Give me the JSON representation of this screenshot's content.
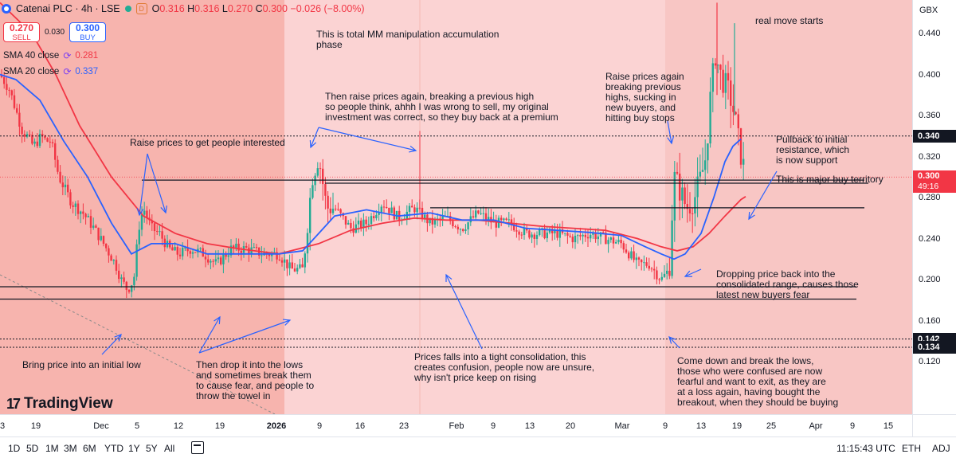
{
  "header": {
    "title": "Catenai PLC · 4h · LSE",
    "open_label": "O",
    "open": "0.316",
    "high_label": "H",
    "high": "0.316",
    "low_label": "L",
    "low": "0.270",
    "close_label": "C",
    "close": "0.300",
    "change": "−0.026 (−8.00%)",
    "d_badge": "D"
  },
  "trade": {
    "sell_price": "0.270",
    "sell_label": "SELL",
    "spread": "0.030",
    "buy_price": "0.300",
    "buy_label": "BUY"
  },
  "indicators": [
    {
      "label": "SMA 40 close",
      "value": "0.281",
      "color": "#f23645"
    },
    {
      "label": "SMA 20 close",
      "value": "0.337",
      "color": "#2962ff"
    }
  ],
  "price_axis": {
    "currency": "GBX",
    "ticks": [
      "0.440",
      "0.400",
      "0.360",
      "0.320",
      "0.280",
      "0.240",
      "0.200",
      "0.160",
      "0.120"
    ],
    "labels": [
      {
        "value": "0.340",
        "kind": "level"
      },
      {
        "value": "0.142",
        "kind": "level"
      },
      {
        "value": "0.134",
        "kind": "level"
      }
    ],
    "current_price": "0.300",
    "countdown": "49:16"
  },
  "time_axis": {
    "ticks": [
      {
        "label": "3"
      },
      {
        "label": "19"
      },
      {
        "label": "Dec"
      },
      {
        "label": "5"
      },
      {
        "label": "12"
      },
      {
        "label": "19"
      },
      {
        "label": "2026",
        "bold": true
      },
      {
        "label": "9"
      },
      {
        "label": "16"
      },
      {
        "label": "23"
      },
      {
        "label": "Feb"
      },
      {
        "label": "9"
      },
      {
        "label": "13"
      },
      {
        "label": "20"
      },
      {
        "label": "Mar"
      },
      {
        "label": "9"
      },
      {
        "label": "13"
      },
      {
        "label": "19"
      },
      {
        "label": "25"
      },
      {
        "label": "Apr"
      },
      {
        "label": "9"
      },
      {
        "label": "15"
      }
    ]
  },
  "annotations": {
    "accumulation": "This is total MM manipulation accumulation\nphase",
    "real_move": "real move starts",
    "raise_interest": "Raise prices to get people interested",
    "raise_again": "Then raise prices again, breaking a previous high\nso people think, ahhh I was wrong to sell, my original\ninvestment was correct, so they buy back at a premium",
    "raise_highs": "Raise prices again\nbreaking previous\nhighs, sucking in\nnew buyers, and\nhitting buy stops",
    "pullback": "Pullback to initial\nresistance, which\nis now support",
    "major_buy": "This is major buy territory",
    "dropping": "Dropping price back into the\nconsolidated range, causes those\nlatest new buyers fear",
    "initial_low": "Bring price into an initial low",
    "drop_lows": "Then drop it into the lows\nand sometimes break them\nto cause fear, and people to\nthrow the towel in",
    "consolidation": "Prices falls into a tight consolidation, this\ncreates confusion, people now are unsure,\nwhy isn't price keep on rising",
    "break_lows": "Come down and break the lows,\nthose who were confused are now\nfearful and want to exit, as they are\nat a loss again, having bought the\nbreakout, when they should be buying"
  },
  "toolbar": {
    "timeframes": [
      "1D",
      "5D",
      "1M",
      "3M",
      "6M",
      "YTD",
      "1Y",
      "5Y",
      "All"
    ],
    "clock": "11:15:43 UTC",
    "eth": "ETH",
    "adj": "ADJ"
  },
  "logo": {
    "text": "TradingView"
  },
  "colors": {
    "up": "#22ab94",
    "down": "#f23645",
    "sma20": "#2962ff",
    "sma40": "#f23645",
    "bg_shade": "#fbd3d3",
    "bg_shade_dark": "#f5a9a2"
  },
  "chart_data": {
    "type": "candlestick",
    "symbol": "Catenai PLC",
    "interval": "4h",
    "exchange": "LSE",
    "currency": "GBX",
    "ylim": [
      0.1,
      0.47
    ],
    "horizontal_levels": [
      0.34,
      0.297,
      0.294,
      0.27,
      0.193,
      0.181,
      0.142,
      0.134
    ],
    "price_path": [
      [
        0,
        0.4
      ],
      [
        12,
        0.385
      ],
      [
        20,
        0.365
      ],
      [
        28,
        0.345
      ],
      [
        34,
        0.34
      ],
      [
        42,
        0.33
      ],
      [
        52,
        0.34
      ],
      [
        58,
        0.335
      ],
      [
        64,
        0.335
      ],
      [
        74,
        0.3
      ],
      [
        90,
        0.275
      ],
      [
        104,
        0.265
      ],
      [
        118,
        0.25
      ],
      [
        130,
        0.235
      ],
      [
        145,
        0.215
      ],
      [
        152,
        0.2
      ],
      [
        160,
        0.19
      ],
      [
        168,
        0.2
      ],
      [
        174,
        0.25
      ],
      [
        180,
        0.27
      ],
      [
        190,
        0.25
      ],
      [
        200,
        0.245
      ],
      [
        212,
        0.23
      ],
      [
        224,
        0.225
      ],
      [
        240,
        0.23
      ],
      [
        256,
        0.225
      ],
      [
        272,
        0.215
      ],
      [
        290,
        0.23
      ],
      [
        310,
        0.23
      ],
      [
        330,
        0.225
      ],
      [
        350,
        0.225
      ],
      [
        365,
        0.21
      ],
      [
        380,
        0.21
      ],
      [
        392,
        0.3
      ],
      [
        400,
        0.32
      ],
      [
        410,
        0.27
      ],
      [
        420,
        0.27
      ],
      [
        430,
        0.26
      ],
      [
        440,
        0.25
      ],
      [
        460,
        0.255
      ],
      [
        480,
        0.275
      ],
      [
        500,
        0.26
      ],
      [
        520,
        0.27
      ],
      [
        540,
        0.255
      ],
      [
        560,
        0.26
      ],
      [
        580,
        0.25
      ],
      [
        600,
        0.265
      ],
      [
        620,
        0.255
      ],
      [
        640,
        0.255
      ],
      [
        660,
        0.245
      ],
      [
        680,
        0.245
      ],
      [
        700,
        0.245
      ],
      [
        720,
        0.24
      ],
      [
        740,
        0.245
      ],
      [
        760,
        0.24
      ],
      [
        780,
        0.235
      ],
      [
        800,
        0.215
      ],
      [
        815,
        0.215
      ],
      [
        830,
        0.2
      ],
      [
        840,
        0.21
      ],
      [
        846,
        0.3
      ],
      [
        852,
        0.29
      ],
      [
        862,
        0.27
      ],
      [
        872,
        0.28
      ],
      [
        880,
        0.3
      ],
      [
        886,
        0.32
      ],
      [
        892,
        0.38
      ],
      [
        898,
        0.42
      ],
      [
        904,
        0.4
      ],
      [
        910,
        0.39
      ],
      [
        916,
        0.38
      ],
      [
        922,
        0.36
      ],
      [
        928,
        0.33
      ],
      [
        936,
        0.3
      ]
    ],
    "sma20_path": [
      [
        0,
        0.4
      ],
      [
        20,
        0.395
      ],
      [
        50,
        0.375
      ],
      [
        80,
        0.335
      ],
      [
        110,
        0.3
      ],
      [
        140,
        0.255
      ],
      [
        165,
        0.225
      ],
      [
        190,
        0.235
      ],
      [
        220,
        0.235
      ],
      [
        260,
        0.225
      ],
      [
        300,
        0.225
      ],
      [
        350,
        0.225
      ],
      [
        380,
        0.228
      ],
      [
        400,
        0.245
      ],
      [
        420,
        0.262
      ],
      [
        460,
        0.268
      ],
      [
        500,
        0.262
      ],
      [
        540,
        0.265
      ],
      [
        580,
        0.258
      ],
      [
        620,
        0.258
      ],
      [
        660,
        0.25
      ],
      [
        700,
        0.248
      ],
      [
        740,
        0.246
      ],
      [
        780,
        0.243
      ],
      [
        810,
        0.232
      ],
      [
        830,
        0.225
      ],
      [
        846,
        0.22
      ],
      [
        860,
        0.225
      ],
      [
        880,
        0.245
      ],
      [
        896,
        0.28
      ],
      [
        910,
        0.315
      ],
      [
        920,
        0.33
      ],
      [
        930,
        0.337
      ]
    ],
    "sma40_path": [
      [
        0,
        0.47
      ],
      [
        40,
        0.44
      ],
      [
        70,
        0.4
      ],
      [
        100,
        0.35
      ],
      [
        140,
        0.3
      ],
      [
        180,
        0.262
      ],
      [
        220,
        0.245
      ],
      [
        260,
        0.235
      ],
      [
        300,
        0.23
      ],
      [
        350,
        0.225
      ],
      [
        400,
        0.235
      ],
      [
        440,
        0.248
      ],
      [
        480,
        0.255
      ],
      [
        520,
        0.26
      ],
      [
        560,
        0.258
      ],
      [
        600,
        0.258
      ],
      [
        640,
        0.255
      ],
      [
        680,
        0.252
      ],
      [
        720,
        0.25
      ],
      [
        760,
        0.248
      ],
      [
        800,
        0.24
      ],
      [
        830,
        0.232
      ],
      [
        850,
        0.228
      ],
      [
        870,
        0.232
      ],
      [
        890,
        0.245
      ],
      [
        910,
        0.262
      ],
      [
        930,
        0.278
      ],
      [
        936,
        0.281
      ]
    ]
  }
}
